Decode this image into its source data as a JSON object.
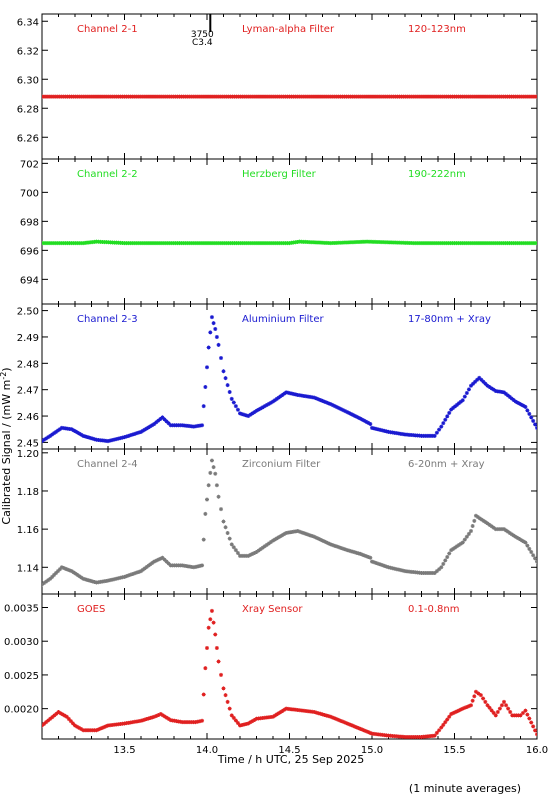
{
  "figure": {
    "ylabel_html": [
      "Calibrated Signal / (mW m",
      "-2",
      ")"
    ],
    "xlabel": "Time / h UTC, 25 Sep 2025",
    "footnote": "(1 minute averages)",
    "xlim": [
      13.0,
      16.0
    ],
    "xticks": [
      "13.5",
      "14.0",
      "14.5",
      "15.0",
      "15.5",
      "16.0"
    ],
    "xtick_values": [
      13.5,
      14.0,
      14.5,
      15.0,
      15.5,
      16.0
    ],
    "frame_color": "#000000",
    "marker": "asterisk"
  },
  "chart_data": [
    {
      "type": "scatter",
      "channel": "Channel 2-1",
      "filter": "Lyman-alpha Filter",
      "band": "120-123nm",
      "color": "#e02020",
      "ylim": [
        6.245,
        6.345
      ],
      "yticks": [
        6.26,
        6.28,
        6.3,
        6.32,
        6.34
      ],
      "ytick_labels": [
        "6.26",
        "6.28",
        "6.30",
        "6.32",
        "6.34"
      ],
      "annotation": {
        "x": 14.02,
        "lines": [
          "3750",
          "C3.4"
        ]
      },
      "x": [
        13.0,
        13.25,
        13.5,
        13.75,
        14.0,
        14.25,
        14.5,
        14.75,
        15.0,
        15.25,
        15.5,
        15.75,
        16.0
      ],
      "values": [
        6.288,
        6.288,
        6.288,
        6.288,
        6.288,
        6.288,
        6.288,
        6.288,
        6.288,
        6.288,
        6.288,
        6.288,
        6.288
      ]
    },
    {
      "type": "scatter",
      "channel": "Channel 2-2",
      "filter": "Herzberg Filter",
      "band": "190-222nm",
      "color": "#22dd22",
      "ylim": [
        692.3,
        702.3
      ],
      "yticks": [
        694,
        696,
        698,
        700,
        702
      ],
      "ytick_labels": [
        "694",
        "696",
        "698",
        "700",
        "702"
      ],
      "x": [
        13.0,
        13.25,
        13.33,
        13.5,
        13.75,
        14.0,
        14.25,
        14.5,
        14.56,
        14.75,
        14.97,
        15.25,
        15.5,
        15.75,
        16.0
      ],
      "values": [
        696.5,
        696.5,
        696.6,
        696.5,
        696.5,
        696.5,
        696.5,
        696.5,
        696.6,
        696.5,
        696.6,
        696.5,
        696.5,
        696.5,
        696.5
      ]
    },
    {
      "type": "scatter",
      "channel": "Channel 2-3",
      "filter": "Aluminium Filter",
      "band": "17-80nm + Xray",
      "color": "#1a1ad0",
      "ylim": [
        2.4475,
        2.5025
      ],
      "yticks": [
        2.45,
        2.46,
        2.47,
        2.48,
        2.49,
        2.5
      ],
      "ytick_labels": [
        "2.45",
        "2.46",
        "2.47",
        "2.48",
        "2.49",
        "2.50"
      ],
      "x": [
        13.0,
        13.05,
        13.12,
        13.18,
        13.25,
        13.33,
        13.4,
        13.5,
        13.6,
        13.68,
        13.73,
        13.78,
        13.85,
        13.92,
        13.97,
        13.99,
        14.01,
        14.03,
        14.05,
        14.07,
        14.1,
        14.15,
        14.2,
        14.25,
        14.3,
        14.4,
        14.48,
        14.55,
        14.65,
        14.75,
        14.85,
        14.93,
        14.99,
        15.0,
        15.1,
        15.2,
        15.3,
        15.38,
        15.42,
        15.48,
        15.55,
        15.6,
        15.65,
        15.7,
        15.75,
        15.8,
        15.87,
        15.93,
        16.0
      ],
      "values": [
        2.4505,
        2.4525,
        2.4555,
        2.455,
        2.4525,
        2.451,
        2.4505,
        2.452,
        2.454,
        2.457,
        2.4595,
        2.4565,
        2.4565,
        2.456,
        2.4565,
        2.471,
        2.486,
        2.4975,
        2.493,
        2.487,
        2.477,
        2.4665,
        2.461,
        2.46,
        2.462,
        2.4655,
        2.469,
        2.468,
        2.467,
        2.4645,
        2.4615,
        2.459,
        2.457,
        2.4555,
        2.454,
        2.453,
        2.4525,
        2.4525,
        2.456,
        2.4625,
        2.466,
        2.4715,
        2.4745,
        2.4715,
        2.4695,
        2.469,
        2.4655,
        2.4635,
        2.4555
      ]
    },
    {
      "type": "scatter",
      "channel": "Channel 2-4",
      "filter": "Zirconium Filter",
      "band": "6-20nm + Xray",
      "color": "#7a7a7a",
      "ylim": [
        1.126,
        1.202
      ],
      "yticks": [
        1.14,
        1.16,
        1.18,
        1.2
      ],
      "ytick_labels": [
        "1.14",
        "1.16",
        "1.18",
        "1.20"
      ],
      "x": [
        13.0,
        13.05,
        13.12,
        13.18,
        13.25,
        13.33,
        13.4,
        13.5,
        13.6,
        13.68,
        13.73,
        13.78,
        13.85,
        13.92,
        13.97,
        13.99,
        14.01,
        14.03,
        14.05,
        14.07,
        14.1,
        14.15,
        14.2,
        14.25,
        14.3,
        14.4,
        14.48,
        14.55,
        14.65,
        14.75,
        14.85,
        14.93,
        14.99,
        15.0,
        15.1,
        15.2,
        15.3,
        15.38,
        15.42,
        15.48,
        15.55,
        15.6,
        15.63,
        15.7,
        15.75,
        15.8,
        15.87,
        15.93,
        16.0
      ],
      "values": [
        1.131,
        1.134,
        1.14,
        1.138,
        1.134,
        1.132,
        1.133,
        1.135,
        1.138,
        1.143,
        1.145,
        1.141,
        1.141,
        1.14,
        1.141,
        1.168,
        1.183,
        1.196,
        1.189,
        1.177,
        1.164,
        1.152,
        1.146,
        1.146,
        1.148,
        1.154,
        1.158,
        1.159,
        1.156,
        1.152,
        1.149,
        1.147,
        1.145,
        1.143,
        1.14,
        1.138,
        1.137,
        1.137,
        1.14,
        1.149,
        1.153,
        1.159,
        1.167,
        1.163,
        1.16,
        1.16,
        1.156,
        1.153,
        1.143
      ]
    },
    {
      "type": "scatter",
      "channel": "GOES",
      "filter": "Xray Sensor",
      "band": "0.1-0.8nm",
      "color": "#e02020",
      "ylim": [
        0.00155,
        0.0037
      ],
      "yticks": [
        0.002,
        0.0025,
        0.003,
        0.0035
      ],
      "ytick_labels": [
        "0.0020",
        "0.0025",
        "0.0030",
        "0.0035"
      ],
      "x": [
        13.0,
        13.05,
        13.1,
        13.15,
        13.2,
        13.25,
        13.33,
        13.4,
        13.5,
        13.6,
        13.68,
        13.72,
        13.78,
        13.85,
        13.93,
        13.97,
        13.99,
        14.01,
        14.03,
        14.05,
        14.07,
        14.1,
        14.15,
        14.2,
        14.25,
        14.3,
        14.4,
        14.48,
        14.55,
        14.65,
        14.75,
        14.85,
        14.93,
        15.0,
        15.1,
        15.2,
        15.3,
        15.38,
        15.42,
        15.48,
        15.55,
        15.6,
        15.63,
        15.66,
        15.7,
        15.75,
        15.8,
        15.85,
        15.9,
        15.93,
        16.0
      ],
      "values": [
        0.00175,
        0.00185,
        0.00195,
        0.00188,
        0.00175,
        0.00168,
        0.00168,
        0.00175,
        0.00178,
        0.00182,
        0.00188,
        0.00192,
        0.00183,
        0.0018,
        0.0018,
        0.00182,
        0.0026,
        0.0032,
        0.00345,
        0.0031,
        0.0027,
        0.0023,
        0.0019,
        0.00175,
        0.00178,
        0.00185,
        0.00188,
        0.002,
        0.00198,
        0.00195,
        0.00188,
        0.00178,
        0.0017,
        0.00163,
        0.0016,
        0.00158,
        0.00158,
        0.0016,
        0.00172,
        0.00192,
        0.002,
        0.00205,
        0.00225,
        0.0022,
        0.00205,
        0.0019,
        0.0021,
        0.0019,
        0.0019,
        0.00197,
        0.00162
      ]
    }
  ]
}
